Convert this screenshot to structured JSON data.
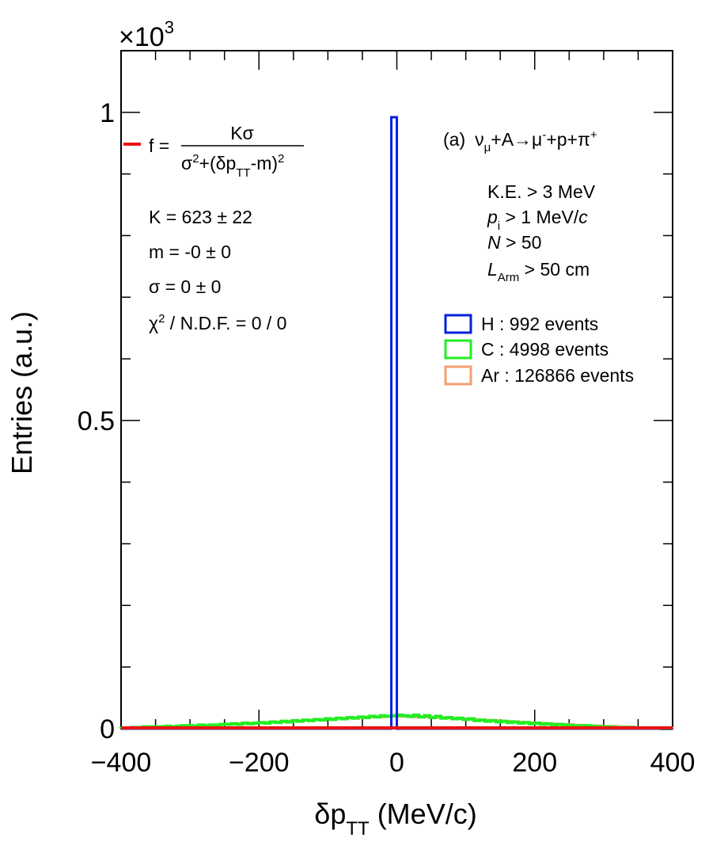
{
  "chart_data": {
    "type": "line",
    "histtype": "step",
    "xlabel": "δp",
    "xlabel_sub": "TT",
    "xlabel_unit": " (MeV/c)",
    "ylabel": "Entries (a.u.)",
    "y_multiplier": "×10",
    "y_multiplier_exp": "3",
    "xlim": [
      -400,
      400
    ],
    "ylim": [
      0,
      1.1
    ],
    "x_ticks": [
      -400,
      -200,
      0,
      200,
      400
    ],
    "x_tick_labels": [
      "−400",
      "−200",
      "0",
      "200",
      "400"
    ],
    "y_ticks": [
      0,
      0.5,
      1
    ],
    "y_tick_labels": [
      "0",
      "0.5",
      "1"
    ],
    "bin_width": 8,
    "x_bins": [
      -400,
      -392,
      -384,
      -376,
      -368,
      -360,
      -352,
      -344,
      -336,
      -328,
      -320,
      -312,
      -304,
      -296,
      -288,
      -280,
      -272,
      -264,
      -256,
      -248,
      -240,
      -232,
      -224,
      -216,
      -208,
      -200,
      -192,
      -184,
      -176,
      -168,
      -160,
      -152,
      -144,
      -136,
      -128,
      -120,
      -112,
      -104,
      -96,
      -88,
      -80,
      -72,
      -64,
      -56,
      -48,
      -40,
      -32,
      -24,
      -16,
      -8,
      0,
      8,
      16,
      24,
      32,
      40,
      48,
      56,
      64,
      72,
      80,
      88,
      96,
      104,
      112,
      120,
      128,
      136,
      144,
      152,
      160,
      168,
      176,
      184,
      192,
      200,
      208,
      216,
      224,
      232,
      240,
      248,
      256,
      264,
      272,
      280,
      288,
      296,
      304,
      312,
      320,
      328,
      336,
      344,
      352,
      360,
      368,
      376,
      384,
      392
    ],
    "series": [
      {
        "name": "H : 992 events",
        "color": "#0022dd",
        "values": [
          0,
          0,
          0,
          0,
          0,
          0,
          0,
          0,
          0,
          0,
          0,
          0,
          0,
          0,
          0,
          0,
          0,
          0,
          0,
          0,
          0,
          0,
          0,
          0,
          0,
          0,
          0,
          0,
          0,
          0,
          0,
          0,
          0,
          0,
          0,
          0,
          0,
          0,
          0,
          0,
          0,
          0,
          0,
          0,
          0,
          0,
          0,
          0,
          0,
          0.992,
          0,
          0,
          0,
          0,
          0,
          0,
          0,
          0,
          0,
          0,
          0,
          0,
          0,
          0,
          0,
          0,
          0,
          0,
          0,
          0,
          0,
          0,
          0,
          0,
          0,
          0,
          0,
          0,
          0,
          0,
          0,
          0,
          0,
          0,
          0,
          0,
          0,
          0,
          0,
          0,
          0,
          0,
          0,
          0,
          0,
          0,
          0,
          0,
          0,
          0
        ]
      },
      {
        "name": "C : 4998 events",
        "color": "#22ee22",
        "values": [
          0.001,
          0.001,
          0.002,
          0.002,
          0.003,
          0.003,
          0.003,
          0.003,
          0.004,
          0.003,
          0.004,
          0.005,
          0.005,
          0.004,
          0.006,
          0.005,
          0.006,
          0.006,
          0.007,
          0.007,
          0.008,
          0.007,
          0.009,
          0.008,
          0.009,
          0.01,
          0.009,
          0.011,
          0.01,
          0.012,
          0.011,
          0.013,
          0.012,
          0.014,
          0.013,
          0.015,
          0.014,
          0.016,
          0.015,
          0.017,
          0.016,
          0.018,
          0.017,
          0.019,
          0.018,
          0.02,
          0.019,
          0.021,
          0.02,
          0.021,
          0.022,
          0.021,
          0.02,
          0.022,
          0.019,
          0.021,
          0.018,
          0.02,
          0.017,
          0.018,
          0.016,
          0.017,
          0.015,
          0.016,
          0.013,
          0.014,
          0.012,
          0.013,
          0.011,
          0.012,
          0.01,
          0.011,
          0.009,
          0.01,
          0.008,
          0.009,
          0.007,
          0.008,
          0.006,
          0.007,
          0.006,
          0.005,
          0.005,
          0.004,
          0.005,
          0.004,
          0.003,
          0.003,
          0.003,
          0.002,
          0.002,
          0.002,
          0.002,
          0.001,
          0.001,
          0.001,
          0.001,
          0.001,
          0.0,
          0.0
        ]
      },
      {
        "name": "Ar : 126866 events",
        "color": "#f4a070",
        "values": [
          0.001,
          0.001,
          0.001,
          0.002,
          0.002,
          0.002,
          0.002,
          0.003,
          0.003,
          0.003,
          0.004,
          0.004,
          0.004,
          0.005,
          0.005,
          0.005,
          0.006,
          0.006,
          0.007,
          0.007,
          0.007,
          0.008,
          0.008,
          0.009,
          0.009,
          0.01,
          0.01,
          0.011,
          0.011,
          0.012,
          0.012,
          0.013,
          0.013,
          0.014,
          0.014,
          0.015,
          0.015,
          0.016,
          0.016,
          0.017,
          0.017,
          0.018,
          0.018,
          0.018,
          0.019,
          0.019,
          0.019,
          0.019,
          0.02,
          0.02,
          0.02,
          0.02,
          0.019,
          0.019,
          0.019,
          0.019,
          0.018,
          0.018,
          0.018,
          0.017,
          0.017,
          0.016,
          0.016,
          0.015,
          0.015,
          0.014,
          0.014,
          0.013,
          0.013,
          0.012,
          0.012,
          0.011,
          0.011,
          0.01,
          0.01,
          0.009,
          0.009,
          0.008,
          0.008,
          0.007,
          0.007,
          0.007,
          0.006,
          0.006,
          0.005,
          0.005,
          0.005,
          0.004,
          0.004,
          0.004,
          0.003,
          0.003,
          0.003,
          0.002,
          0.002,
          0.002,
          0.002,
          0.001,
          0.001,
          0.001
        ]
      }
    ],
    "fit": {
      "color": "#ee1111",
      "function": "lorentzian",
      "K": 623,
      "m": 0,
      "sigma": 0
    },
    "legend_entries": [
      {
        "label": "H : 992 events",
        "color": "#0022dd"
      },
      {
        "label": "C : 4998 events",
        "color": "#22ee22"
      },
      {
        "label": "Ar : 126866 events",
        "color": "#f4a070"
      }
    ],
    "legend_placement": "top-right",
    "grid": false
  },
  "fitbox": {
    "f_label": "f =",
    "numerator": "Kσ",
    "denominator_a": "σ",
    "denominator_b": "2",
    "denominator_c": "+(δp",
    "denominator_d": "TT",
    "denominator_e": "-m)",
    "denominator_f": "2",
    "K_line": "K = 623 ± 22",
    "m_line": "m = -0 ± 0",
    "sigma_line": "σ = 0 ± 0",
    "chi_a": "χ",
    "chi_b": "2",
    "chi_c": " / N.D.F. = 0 / 0"
  },
  "reaction": {
    "prefix": "(a)",
    "nu": "ν",
    "nu_sub": "μ",
    "mid": "+A→μ",
    "mu_sup": "-",
    "rest": "+p+π",
    "pi_sup": "+"
  },
  "cuts": {
    "ke": "K.E. > 3 MeV",
    "p_a": "p",
    "p_sub": "i",
    "p_b": " > 1 MeV/",
    "p_c": "c",
    "n_a": "N",
    "n_b": " > 50",
    "l_a": "L",
    "l_sub": "Arm",
    "l_b": " > 50 cm"
  }
}
